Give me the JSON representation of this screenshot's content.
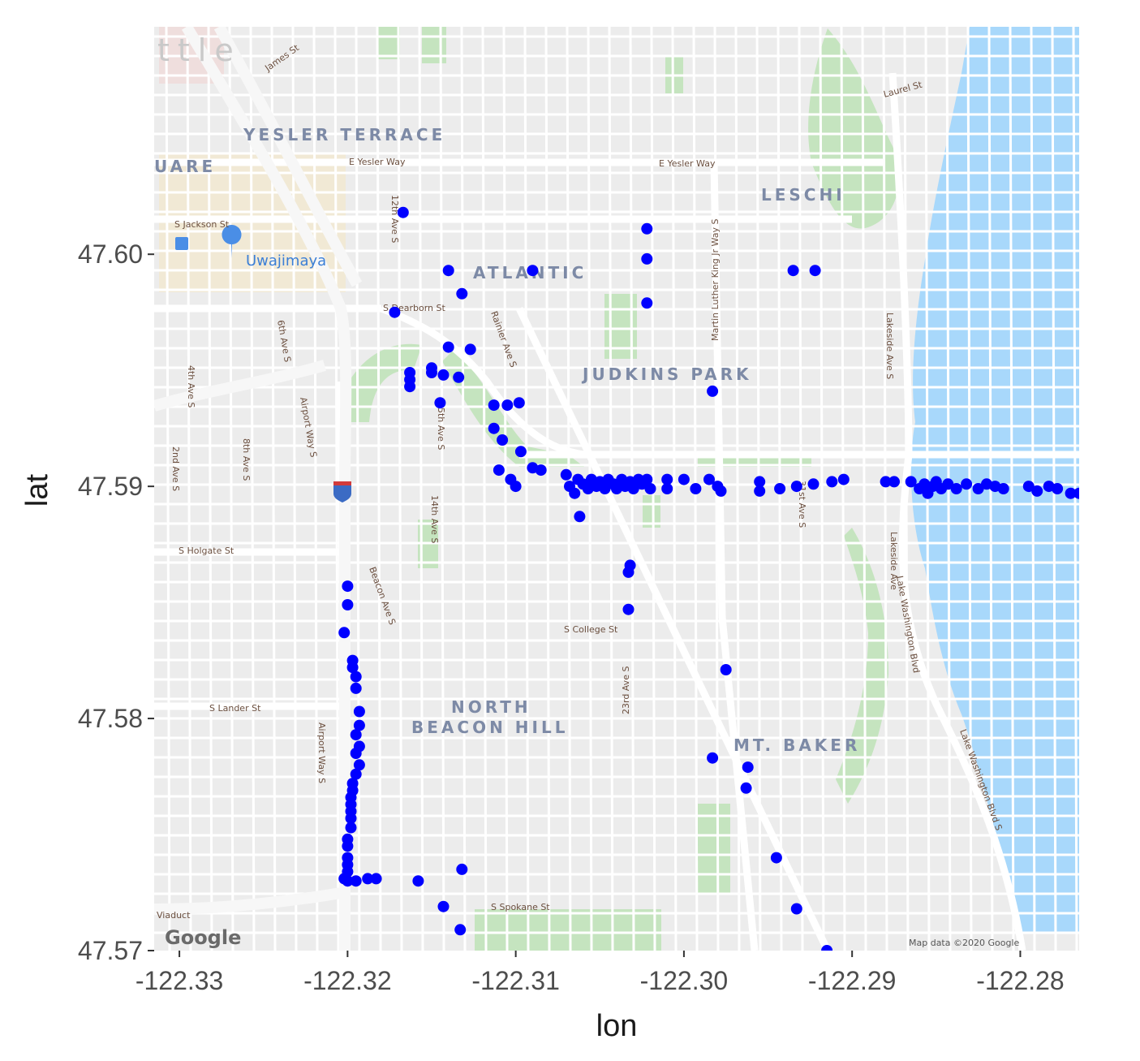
{
  "chart_data": {
    "type": "scatter",
    "title": "",
    "xlabel": "lon",
    "ylabel": "lat",
    "xlim": [
      -122.3315,
      -122.2765
    ],
    "ylim": [
      47.57,
      47.6098
    ],
    "x_ticks": [
      -122.33,
      -122.32,
      -122.31,
      -122.3,
      -122.29,
      -122.28
    ],
    "x_tick_labels": [
      "-122.33",
      "-122.32",
      "-122.31",
      "-122.30",
      "-122.29",
      "-122.28"
    ],
    "y_ticks": [
      47.57,
      47.58,
      47.59,
      47.6
    ],
    "y_tick_labels": [
      "47.57",
      "47.58",
      "47.59",
      "47.60"
    ],
    "point_color": "#0000ff",
    "points": [
      [
        -122.3167,
        47.6018
      ],
      [
        -122.314,
        47.5993
      ],
      [
        -122.3132,
        47.5983
      ],
      [
        -122.309,
        47.5993
      ],
      [
        -122.3022,
        47.6011
      ],
      [
        -122.3022,
        47.5998
      ],
      [
        -122.3022,
        47.5979
      ],
      [
        -122.2935,
        47.5993
      ],
      [
        -122.2922,
        47.5993
      ],
      [
        -122.3172,
        47.5975
      ],
      [
        -122.314,
        47.596
      ],
      [
        -122.3127,
        47.5959
      ],
      [
        -122.3163,
        47.5949
      ],
      [
        -122.3163,
        47.5946
      ],
      [
        -122.3163,
        47.5943
      ],
      [
        -122.315,
        47.5951
      ],
      [
        -122.315,
        47.5949
      ],
      [
        -122.3143,
        47.5948
      ],
      [
        -122.3134,
        47.5947
      ],
      [
        -122.3145,
        47.5936
      ],
      [
        -122.3113,
        47.5935
      ],
      [
        -122.3105,
        47.5935
      ],
      [
        -122.3098,
        47.5936
      ],
      [
        -122.3113,
        47.5925
      ],
      [
        -122.3108,
        47.592
      ],
      [
        -122.3097,
        47.5915
      ],
      [
        -122.309,
        47.5908
      ],
      [
        -122.3085,
        47.5907
      ],
      [
        -122.311,
        47.5907
      ],
      [
        -122.3103,
        47.5903
      ],
      [
        -122.31,
        47.59
      ],
      [
        -122.307,
        47.5905
      ],
      [
        -122.3068,
        47.59
      ],
      [
        -122.3065,
        47.5897
      ],
      [
        -122.3063,
        47.5903
      ],
      [
        -122.306,
        47.5901
      ],
      [
        -122.3057,
        47.5899
      ],
      [
        -122.3055,
        47.5903
      ],
      [
        -122.3052,
        47.59
      ],
      [
        -122.305,
        47.5902
      ],
      [
        -122.3047,
        47.5899
      ],
      [
        -122.3045,
        47.5903
      ],
      [
        -122.3042,
        47.5901
      ],
      [
        -122.304,
        47.5899
      ],
      [
        -122.3037,
        47.5903
      ],
      [
        -122.3035,
        47.59
      ],
      [
        -122.3032,
        47.5902
      ],
      [
        -122.303,
        47.5899
      ],
      [
        -122.3027,
        47.5903
      ],
      [
        -122.3025,
        47.5901
      ],
      [
        -122.3022,
        47.5903
      ],
      [
        -122.302,
        47.5899
      ],
      [
        -122.301,
        47.5899
      ],
      [
        -122.301,
        47.5903
      ],
      [
        -122.3,
        47.5903
      ],
      [
        -122.2993,
        47.5899
      ],
      [
        -122.2985,
        47.5903
      ],
      [
        -122.298,
        47.59
      ],
      [
        -122.2978,
        47.5898
      ],
      [
        -122.2955,
        47.5902
      ],
      [
        -122.2955,
        47.5898
      ],
      [
        -122.2943,
        47.5899
      ],
      [
        -122.2933,
        47.59
      ],
      [
        -122.2923,
        47.5901
      ],
      [
        -122.2912,
        47.5902
      ],
      [
        -122.2905,
        47.5903
      ],
      [
        -122.288,
        47.5902
      ],
      [
        -122.2875,
        47.5902
      ],
      [
        -122.2865,
        47.5902
      ],
      [
        -122.286,
        47.5899
      ],
      [
        -122.2857,
        47.5901
      ],
      [
        -122.2855,
        47.5897
      ],
      [
        -122.2852,
        47.59
      ],
      [
        -122.285,
        47.5902
      ],
      [
        -122.2847,
        47.5899
      ],
      [
        -122.2843,
        47.5901
      ],
      [
        -122.2838,
        47.5899
      ],
      [
        -122.2832,
        47.5901
      ],
      [
        -122.2825,
        47.5899
      ],
      [
        -122.282,
        47.5901
      ],
      [
        -122.2815,
        47.59
      ],
      [
        -122.281,
        47.5899
      ],
      [
        -122.2795,
        47.59
      ],
      [
        -122.279,
        47.5898
      ],
      [
        -122.2783,
        47.59
      ],
      [
        -122.2778,
        47.5899
      ],
      [
        -122.277,
        47.5897
      ],
      [
        -122.2765,
        47.5897
      ],
      [
        -122.3062,
        47.5887
      ],
      [
        -122.3032,
        47.5866
      ],
      [
        -122.3033,
        47.5863
      ],
      [
        -122.3033,
        47.5847
      ],
      [
        -122.2983,
        47.5941
      ],
      [
        -122.2975,
        47.5821
      ],
      [
        -122.2983,
        47.5783
      ],
      [
        -122.2962,
        47.5779
      ],
      [
        -122.2963,
        47.577
      ],
      [
        -122.2945,
        47.574
      ],
      [
        -122.2933,
        47.5718
      ],
      [
        -122.2915,
        47.57
      ],
      [
        -122.32,
        47.5857
      ],
      [
        -122.32,
        47.5849
      ],
      [
        -122.3202,
        47.5837
      ],
      [
        -122.3197,
        47.5825
      ],
      [
        -122.3197,
        47.5822
      ],
      [
        -122.3195,
        47.5818
      ],
      [
        -122.3195,
        47.5813
      ],
      [
        -122.3193,
        47.5803
      ],
      [
        -122.3193,
        47.5797
      ],
      [
        -122.3195,
        47.5793
      ],
      [
        -122.3193,
        47.5788
      ],
      [
        -122.3195,
        47.5785
      ],
      [
        -122.3193,
        47.578
      ],
      [
        -122.3195,
        47.5776
      ],
      [
        -122.3197,
        47.5772
      ],
      [
        -122.3197,
        47.5769
      ],
      [
        -122.3198,
        47.5766
      ],
      [
        -122.3198,
        47.5763
      ],
      [
        -122.3198,
        47.576
      ],
      [
        -122.3198,
        47.5757
      ],
      [
        -122.3198,
        47.5753
      ],
      [
        -122.32,
        47.5748
      ],
      [
        -122.32,
        47.5745
      ],
      [
        -122.32,
        47.574
      ],
      [
        -122.32,
        47.5737
      ],
      [
        -122.32,
        47.5734
      ],
      [
        -122.3202,
        47.5731
      ],
      [
        -122.32,
        47.573
      ],
      [
        -122.3195,
        47.573
      ],
      [
        -122.3188,
        47.5731
      ],
      [
        -122.3183,
        47.5731
      ],
      [
        -122.3158,
        47.573
      ],
      [
        -122.3143,
        47.5719
      ],
      [
        -122.3133,
        47.5709
      ],
      [
        -122.3132,
        47.5735
      ]
    ]
  },
  "map": {
    "neighborhoods": [
      "YESLER TERRACE",
      "ATLANTIC",
      "JUDKINS PARK",
      "LESCHI",
      "NORTH",
      "BEACON HILL",
      "MT. BAKER",
      "UARE",
      "ttle"
    ],
    "poi": "Uwajimaya",
    "streets": [
      "E Yesler Way",
      "E Yesler Way",
      "S Jackson St",
      "S Dearborn St",
      "S Holgate St",
      "S College St",
      "S Lander St",
      "S Spokane St",
      "Viaduct",
      "James St",
      "Lakeside Ave S",
      "Lake Washington Blvd S",
      "Martin Luther King Jr Way S",
      "Rainier Ave S",
      "Beacon Ave S",
      "23rd Ave S",
      "12th Ave S",
      "15th Ave S",
      "14th Ave S",
      "Airport Way S",
      "6th Ave S",
      "4th Ave S",
      "2nd Ave S",
      "Lakeside Ave",
      "Lake Washington Blvd",
      "Laurel St",
      "31st Ave S",
      "8th Ave S",
      "Airport Way S"
    ],
    "credit": "Map data ©2020 Google",
    "logo": "Google",
    "colors": {
      "land": "#ececec",
      "water": "#a8d8fb",
      "park": "#c5e4bf",
      "road": "#ffffff",
      "highway": "#f5f5f5"
    }
  }
}
